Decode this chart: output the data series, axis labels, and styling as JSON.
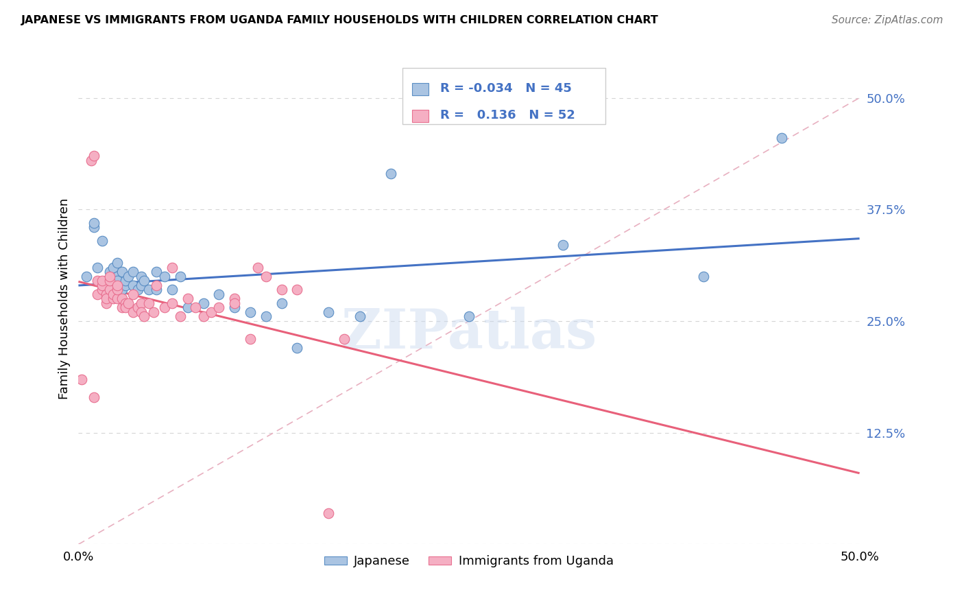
{
  "title": "JAPANESE VS IMMIGRANTS FROM UGANDA FAMILY HOUSEHOLDS WITH CHILDREN CORRELATION CHART",
  "source": "Source: ZipAtlas.com",
  "ylabel": "Family Households with Children",
  "xlim": [
    0.0,
    0.5
  ],
  "ylim": [
    0.0,
    0.55
  ],
  "yticks": [
    0.125,
    0.25,
    0.375,
    0.5
  ],
  "ytick_labels": [
    "12.5%",
    "25.0%",
    "37.5%",
    "50.0%"
  ],
  "xticks": [
    0.0,
    0.1,
    0.2,
    0.3,
    0.4,
    0.5
  ],
  "xtick_labels": [
    "0.0%",
    "",
    "",
    "",
    "",
    "50.0%"
  ],
  "blue_R": "-0.034",
  "blue_N": "45",
  "pink_R": "0.136",
  "pink_N": "52",
  "blue_fill": "#aac4e2",
  "pink_fill": "#f5afc3",
  "blue_edge": "#5b8ec4",
  "pink_edge": "#e87090",
  "blue_line": "#4472c4",
  "pink_line": "#e8607a",
  "ref_line_color": "#e8b0c0",
  "watermark_color": "#c8d8ee",
  "watermark": "ZIPatlas",
  "blue_x": [
    0.005,
    0.01,
    0.01,
    0.012,
    0.015,
    0.018,
    0.02,
    0.02,
    0.022,
    0.022,
    0.025,
    0.025,
    0.025,
    0.028,
    0.028,
    0.03,
    0.03,
    0.032,
    0.035,
    0.035,
    0.038,
    0.04,
    0.04,
    0.042,
    0.045,
    0.05,
    0.05,
    0.055,
    0.06,
    0.065,
    0.07,
    0.08,
    0.09,
    0.1,
    0.11,
    0.12,
    0.13,
    0.14,
    0.16,
    0.18,
    0.2,
    0.25,
    0.31,
    0.4,
    0.45
  ],
  "blue_y": [
    0.3,
    0.355,
    0.36,
    0.31,
    0.34,
    0.295,
    0.305,
    0.29,
    0.3,
    0.31,
    0.3,
    0.295,
    0.315,
    0.285,
    0.305,
    0.29,
    0.295,
    0.3,
    0.305,
    0.29,
    0.285,
    0.29,
    0.3,
    0.295,
    0.285,
    0.305,
    0.285,
    0.3,
    0.285,
    0.3,
    0.265,
    0.27,
    0.28,
    0.265,
    0.26,
    0.255,
    0.27,
    0.22,
    0.26,
    0.255,
    0.415,
    0.255,
    0.335,
    0.3,
    0.455
  ],
  "pink_x": [
    0.002,
    0.008,
    0.01,
    0.01,
    0.012,
    0.012,
    0.015,
    0.015,
    0.015,
    0.018,
    0.018,
    0.018,
    0.02,
    0.02,
    0.02,
    0.022,
    0.022,
    0.025,
    0.025,
    0.025,
    0.028,
    0.028,
    0.03,
    0.03,
    0.032,
    0.035,
    0.035,
    0.038,
    0.04,
    0.04,
    0.042,
    0.045,
    0.048,
    0.05,
    0.055,
    0.06,
    0.065,
    0.07,
    0.075,
    0.08,
    0.085,
    0.09,
    0.1,
    0.1,
    0.11,
    0.115,
    0.12,
    0.13,
    0.14,
    0.16,
    0.17,
    0.06
  ],
  "pink_y": [
    0.185,
    0.43,
    0.435,
    0.165,
    0.295,
    0.28,
    0.285,
    0.29,
    0.295,
    0.28,
    0.27,
    0.275,
    0.285,
    0.295,
    0.3,
    0.275,
    0.28,
    0.275,
    0.285,
    0.29,
    0.265,
    0.275,
    0.27,
    0.265,
    0.27,
    0.28,
    0.26,
    0.265,
    0.27,
    0.26,
    0.255,
    0.27,
    0.26,
    0.29,
    0.265,
    0.27,
    0.255,
    0.275,
    0.265,
    0.255,
    0.26,
    0.265,
    0.275,
    0.27,
    0.23,
    0.31,
    0.3,
    0.285,
    0.285,
    0.035,
    0.23,
    0.31
  ]
}
